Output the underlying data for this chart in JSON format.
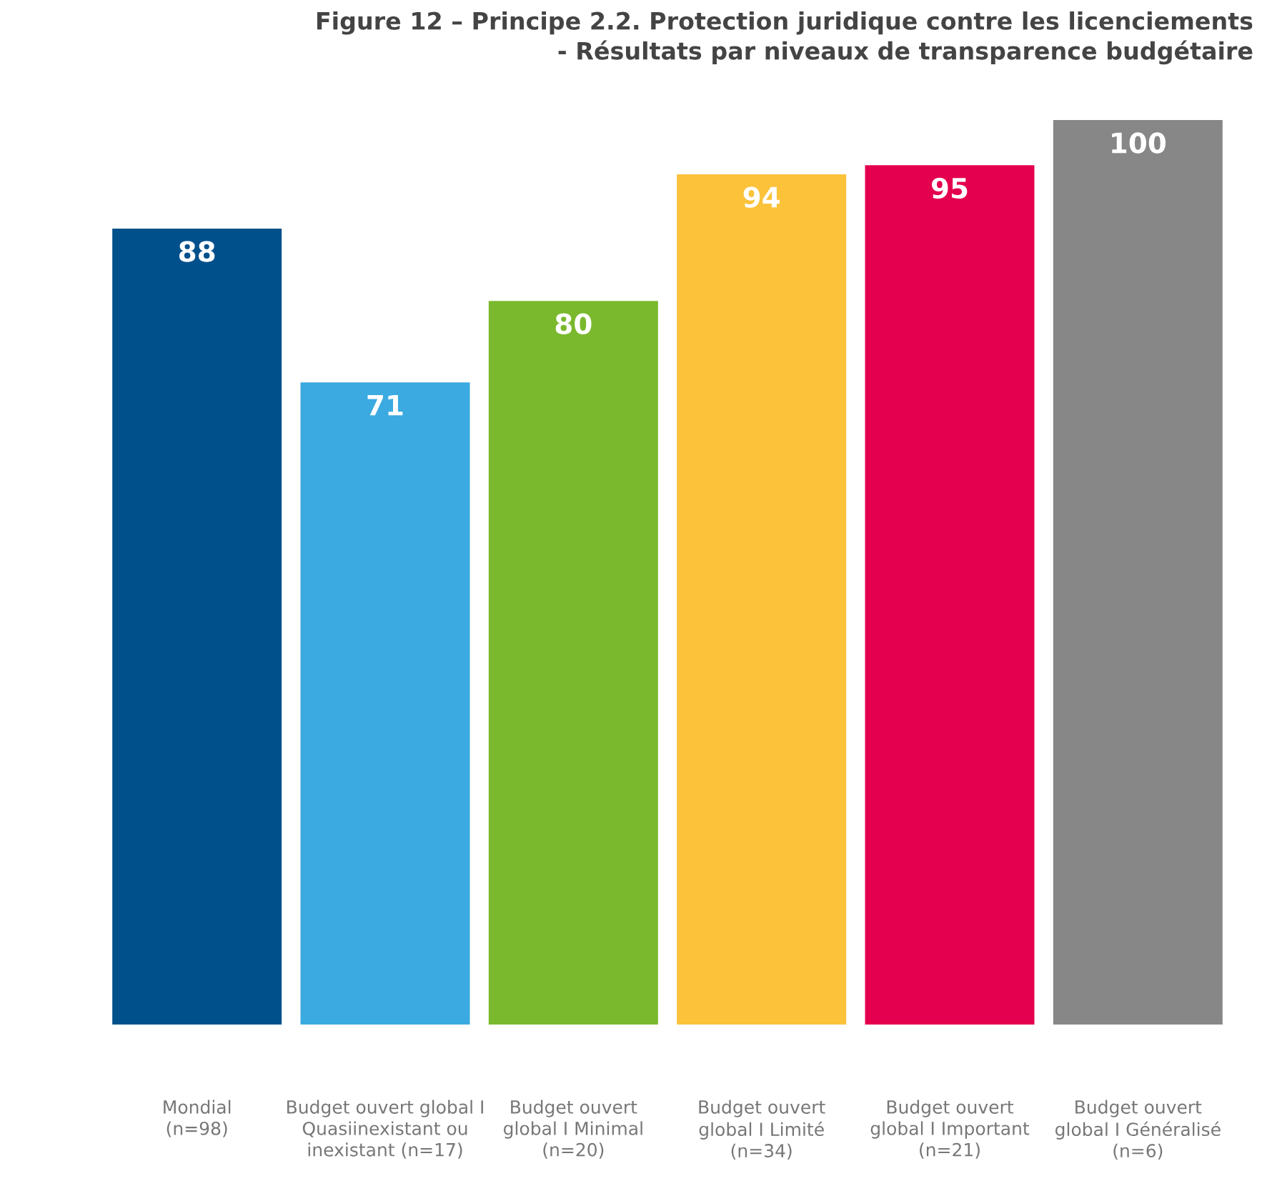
{
  "chart_data": {
    "type": "bar",
    "title": "Figure 12 – Principe 2.2. Protection juridique contre les licenciements\n- Résultats par niveaux de transparence budgétaire",
    "categories": [
      "Mondial\n(n=98)",
      "Budget ouvert global I\nQuasiinexistant ou\ninexistant (n=17)",
      "Budget ouvert\nglobal I Minimal\n(n=20)",
      "Budget ouvert\nglobal I Limité\n(n=34)",
      "Budget ouvert\nglobal I Important\n(n=21)",
      "Budget ouvert\nglobal I Généralisé\n(n=6)"
    ],
    "values": [
      88,
      71,
      80,
      94,
      95,
      100
    ],
    "colors": [
      "#00508c",
      "#3aaae0",
      "#7ab92d",
      "#fbc23a",
      "#e4004f",
      "#878787"
    ],
    "data_labels": true,
    "grid": false,
    "legend": false
  }
}
